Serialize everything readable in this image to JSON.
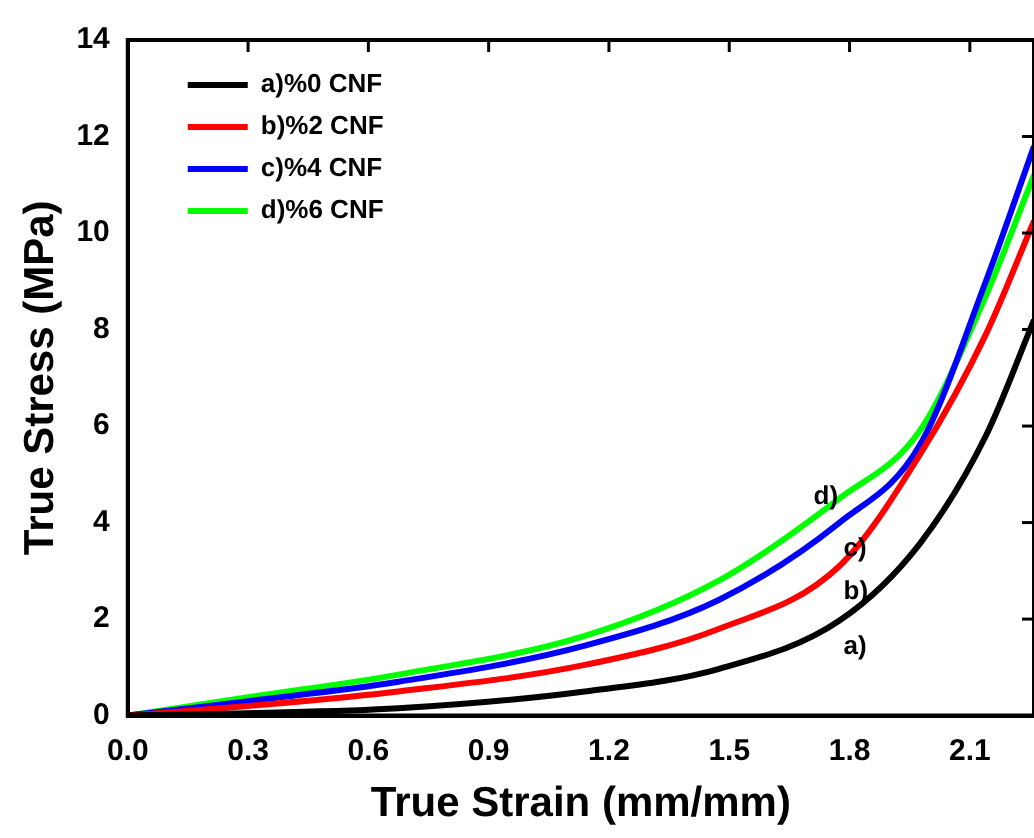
{
  "chart_data": {
    "type": "line",
    "xlabel": "True Strain (mm/mm)",
    "ylabel": "True Stress (MPa)",
    "x": [
      0,
      0.3,
      0.675,
      1.14,
      1.475,
      1.775,
      1.975,
      2.14,
      2.26
    ],
    "series": [
      {
        "name": "a)%0 CNF",
        "color": "#000000",
        "values": [
          0,
          0.05,
          0.15,
          0.5,
          0.97,
          1.97,
          3.56,
          5.8,
          8.2
        ]
      },
      {
        "name": "b)%2 CNF",
        "color": "#ff0000",
        "values": [
          0,
          0.2,
          0.5,
          1.05,
          1.8,
          3.1,
          5.4,
          7.9,
          10.25
        ]
      },
      {
        "name": "c)%4 CNF",
        "color": "#0000ff",
        "values": [
          0,
          0.3,
          0.7,
          1.45,
          2.4,
          4.0,
          5.6,
          9.0,
          11.8
        ]
      },
      {
        "name": "d)%6 CNF",
        "color": "#00ff00",
        "values": [
          0,
          0.38,
          0.85,
          1.65,
          2.8,
          4.5,
          5.9,
          8.7,
          11.2
        ]
      }
    ],
    "xlim": [
      0,
      2.26
    ],
    "xticks": [
      {
        "value": 0,
        "label": "0.0"
      },
      0.3,
      0.6,
      0.9,
      1.2,
      1.5,
      1.8,
      2.1
    ],
    "ylim": [
      0,
      14
    ],
    "yticks": [
      0,
      2,
      4,
      6,
      8,
      10,
      12,
      14
    ],
    "annotations": [
      "a)",
      "b)",
      "c)",
      "d)"
    ],
    "legend": "top left",
    "grid": false,
    "marker": "none",
    "line_style": "solid"
  }
}
